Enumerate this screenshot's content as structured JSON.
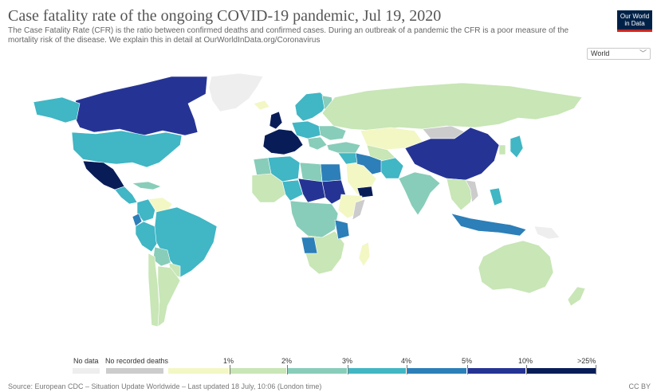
{
  "header": {
    "title": "Case fatality rate of the ongoing COVID-19 pandemic, Jul 19, 2020",
    "subtitle": "The Case Fatality Rate (CFR) is the ratio between confirmed deaths and confirmed cases. During an outbreak of a pandemic the CFR is a poor measure of the mortality risk of the disease. We explain this in detail at OurWorldInData.org/Coronavirus",
    "logo_line1": "Our World",
    "logo_line2": "in Data"
  },
  "controls": {
    "region_select": "World"
  },
  "legend": {
    "no_data": "No data",
    "no_deaths": "No recorded deaths",
    "colors": {
      "no_data": "#eeeeee",
      "no_deaths": "#cccccc",
      "bins": [
        "#f3f7c4",
        "#c8e6b6",
        "#88cdb9",
        "#41b6c4",
        "#2c7fb8",
        "#253494",
        "#081d58"
      ]
    },
    "ticks": [
      "1%",
      "2%",
      "3%",
      "4%",
      "5%",
      "10%",
      ">25%"
    ]
  },
  "colors": {
    "ocean": "#ffffff",
    "border": "#ffffff"
  },
  "footer": {
    "source": "Source: European CDC – Situation Update Worldwide – Last updated 18 July, 10:06 (London time)",
    "license": "CC BY"
  }
}
